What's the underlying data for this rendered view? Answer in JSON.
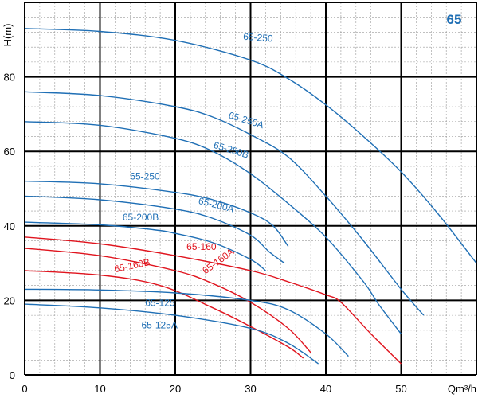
{
  "chart_data": {
    "type": "line",
    "title": "",
    "badge": "65",
    "xlabel": "Qm³/h",
    "ylabel": "H(m)",
    "xlim": [
      0,
      60
    ],
    "ylim": [
      0,
      100
    ],
    "x_ticks": [
      0,
      10,
      20,
      30,
      40,
      50
    ],
    "y_ticks": [
      0,
      20,
      40,
      60,
      80
    ],
    "major_grid": true,
    "minor_grid": true,
    "colors": {
      "blue": "#1f6fb5",
      "red": "#e0141e",
      "major_grid": "#000000",
      "minor_grid": "#9a9a9a",
      "badge": "#1f6fb5"
    },
    "series": [
      {
        "name": "65-250",
        "color": "blue",
        "points": [
          [
            0,
            93
          ],
          [
            10,
            92.2
          ],
          [
            20,
            89.8
          ],
          [
            30,
            84.5
          ],
          [
            35,
            79.5
          ],
          [
            40,
            72.5
          ],
          [
            45,
            64
          ],
          [
            50,
            54.5
          ],
          [
            55,
            43
          ],
          [
            60,
            30
          ]
        ],
        "label": {
          "text": "65-250",
          "x": 29,
          "y": 90,
          "angle": 4
        }
      },
      {
        "name": "65-250A",
        "color": "blue",
        "points": [
          [
            0,
            76
          ],
          [
            10,
            75
          ],
          [
            20,
            72
          ],
          [
            25,
            69.2
          ],
          [
            30,
            64.5
          ],
          [
            35,
            58.5
          ],
          [
            40,
            48
          ],
          [
            45,
            36
          ],
          [
            50,
            23
          ],
          [
            53,
            16
          ]
        ],
        "label": {
          "text": "65-250A",
          "x": 27,
          "y": 69,
          "angle": 17
        }
      },
      {
        "name": "65-250B",
        "color": "blue",
        "points": [
          [
            0,
            68
          ],
          [
            10,
            67
          ],
          [
            20,
            63.5
          ],
          [
            25,
            60
          ],
          [
            30,
            54
          ],
          [
            35,
            46
          ],
          [
            40,
            37
          ],
          [
            45,
            25
          ],
          [
            47,
            19
          ],
          [
            50,
            11
          ]
        ],
        "label": {
          "text": "65-250B",
          "x": 25,
          "y": 61,
          "angle": 17
        }
      },
      {
        "name": "65-250",
        "color": "blue",
        "points": [
          [
            0,
            52
          ],
          [
            10,
            51.3
          ],
          [
            20,
            49
          ],
          [
            25,
            47
          ],
          [
            30,
            43.5
          ],
          [
            33,
            40
          ],
          [
            35,
            34.5
          ]
        ],
        "label": {
          "text": "65-250",
          "x": 14,
          "y": 52.5,
          "angle": 0
        }
      },
      {
        "name": "65-200A",
        "color": "blue",
        "points": [
          [
            0,
            48
          ],
          [
            10,
            47
          ],
          [
            20,
            44.5
          ],
          [
            25,
            42
          ],
          [
            30,
            37.5
          ],
          [
            32.5,
            33
          ],
          [
            34.5,
            30
          ]
        ],
        "label": {
          "text": "65-200A",
          "x": 23,
          "y": 46,
          "angle": 14
        }
      },
      {
        "name": "65-200B",
        "color": "blue",
        "points": [
          [
            0,
            41
          ],
          [
            10,
            40.3
          ],
          [
            17,
            39
          ],
          [
            20,
            38
          ],
          [
            25,
            35.5
          ],
          [
            30,
            31
          ],
          [
            32,
            28
          ]
        ],
        "label": {
          "text": "65-200B",
          "x": 13,
          "y": 41.5,
          "angle": 0
        }
      },
      {
        "name": "65-160",
        "color": "red",
        "points": [
          [
            0,
            37
          ],
          [
            10,
            35.2
          ],
          [
            20,
            32
          ],
          [
            30,
            28
          ],
          [
            35,
            25
          ],
          [
            40,
            21.5
          ],
          [
            42,
            19.5
          ],
          [
            46,
            11
          ],
          [
            50,
            3
          ]
        ],
        "label": {
          "text": "65-160",
          "x": 21.5,
          "y": 33.5,
          "angle": 0
        }
      },
      {
        "name": "65-160A",
        "color": "red",
        "points": [
          [
            0,
            34
          ],
          [
            10,
            32
          ],
          [
            20,
            28
          ],
          [
            25,
            24.5
          ],
          [
            30,
            19.5
          ],
          [
            35,
            12.5
          ],
          [
            38,
            6
          ]
        ],
        "label": {
          "text": "65-160A",
          "x": 24,
          "y": 27,
          "angle": -36
        }
      },
      {
        "name": "65-160B",
        "color": "red",
        "points": [
          [
            0,
            28
          ],
          [
            10,
            26.8
          ],
          [
            18,
            24
          ],
          [
            25,
            18
          ],
          [
            30,
            13
          ],
          [
            35,
            7.5
          ],
          [
            37,
            4.5
          ]
        ],
        "label": {
          "text": "65-160B",
          "x": 12,
          "y": 27.5,
          "angle": -12
        }
      },
      {
        "name": "65-125",
        "color": "blue",
        "points": [
          [
            0,
            23
          ],
          [
            10,
            22.8
          ],
          [
            20,
            22
          ],
          [
            30,
            20
          ],
          [
            35,
            17.5
          ],
          [
            40,
            11
          ],
          [
            43,
            5
          ]
        ],
        "label": {
          "text": "65-125",
          "x": 16,
          "y": 18.5,
          "angle": 0
        }
      },
      {
        "name": "65-125A",
        "color": "blue",
        "points": [
          [
            0,
            19
          ],
          [
            10,
            18
          ],
          [
            20,
            16
          ],
          [
            30,
            12.5
          ],
          [
            35,
            8.5
          ],
          [
            39,
            3
          ]
        ],
        "label": {
          "text": "65-125A",
          "x": 15.5,
          "y": 12.5,
          "angle": 0
        }
      }
    ]
  }
}
